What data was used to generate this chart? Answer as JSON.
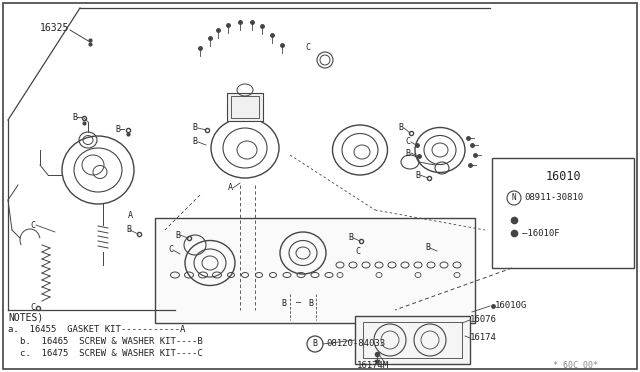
{
  "bg_color": "#ffffff",
  "border_color": "#444444",
  "line_color": "#444444",
  "text_color": "#222222",
  "part_number_main": "16010",
  "part_number_sub1": "08911-30810",
  "part_number_sub2": "16010F",
  "part_number_16325": "16325",
  "part_number_16076": "16076",
  "part_number_16174": "16174",
  "part_number_16174M": "16174M",
  "part_number_16010G": "16010G",
  "part_number_08120": "08120-84033",
  "notes_title": "NOTES)",
  "note_a": "a.  16455  GASKET KIT-----------A",
  "note_b": "b.  16465  SCREW & WASHER KIT----B",
  "note_c": "c.  16475  SCREW & WASHER KIT----C",
  "watermark": "* 60C 00*",
  "figw": 6.4,
  "figh": 3.72,
  "dpi": 100
}
